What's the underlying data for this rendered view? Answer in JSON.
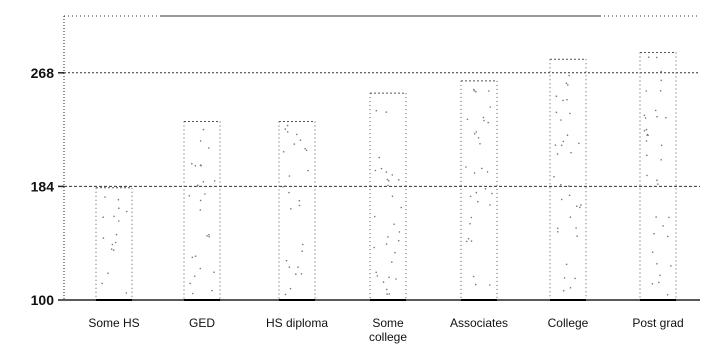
{
  "chart_data": {
    "type": "bar",
    "title": "",
    "xlabel": "",
    "ylabel": "",
    "ylim": [
      100,
      310
    ],
    "yticks": [
      100,
      184,
      268
    ],
    "grid": false,
    "legend": "none",
    "categories": [
      [
        "Some HS"
      ],
      [
        "GED"
      ],
      [
        "HS diploma"
      ],
      [
        "Some",
        "college"
      ],
      [
        "Associates"
      ],
      [
        "College"
      ],
      [
        "Post grad"
      ]
    ],
    "series": [
      {
        "values": [
          183,
          232,
          232,
          253,
          262,
          278,
          283
        ]
      }
    ],
    "reference_lines": [
      184,
      268
    ],
    "colors": {
      "axis": "#222222",
      "bar_edge": "#555555",
      "dots": "#777777",
      "reference": "#333333"
    }
  }
}
